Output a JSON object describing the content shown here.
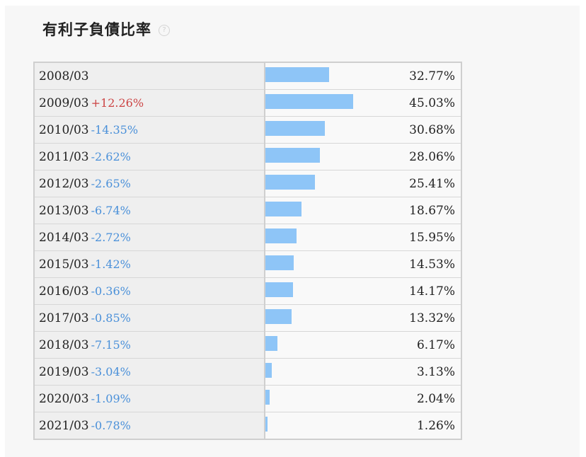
{
  "title": "有利子負債比率",
  "help_icon": "question-circle-icon",
  "colors": {
    "bar": "#8ec5f7",
    "increase": "#cc4444",
    "decrease": "#4a90d9"
  },
  "chart_data": {
    "type": "bar",
    "title": "有利子負債比率",
    "categories": [
      "2008/03",
      "2009/03",
      "2010/03",
      "2011/03",
      "2012/03",
      "2013/03",
      "2014/03",
      "2015/03",
      "2016/03",
      "2017/03",
      "2018/03",
      "2019/03",
      "2020/03",
      "2021/03"
    ],
    "values": [
      32.77,
      45.03,
      30.68,
      28.06,
      25.41,
      18.67,
      15.95,
      14.53,
      14.17,
      13.32,
      6.17,
      3.13,
      2.04,
      1.26
    ],
    "value_labels": [
      "32.77%",
      "45.03%",
      "30.68%",
      "28.06%",
      "25.41%",
      "18.67%",
      "15.95%",
      "14.53%",
      "14.17%",
      "13.32%",
      "6.17%",
      "3.13%",
      "2.04%",
      "1.26%"
    ],
    "changes": [
      "",
      "+12.26%",
      "-14.35%",
      "-2.62%",
      "-2.65%",
      "-6.74%",
      "-2.72%",
      "-1.42%",
      "-0.36%",
      "-0.85%",
      "-7.15%",
      "-3.04%",
      "-1.09%",
      "-0.78%"
    ],
    "orientation": "horizontal",
    "grid": false
  }
}
